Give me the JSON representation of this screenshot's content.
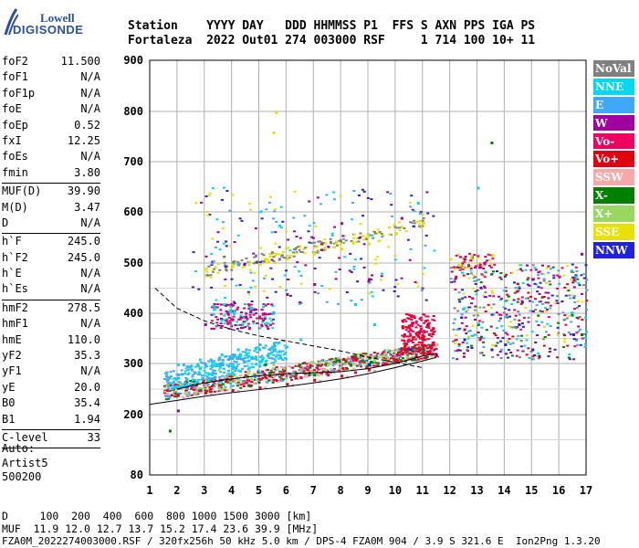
{
  "logo": {
    "line1": "Lowell",
    "line2": "DIGISONDE"
  },
  "header": {
    "line1": "Station    YYYY DAY   DDD HHMMSS P1  FFS S AXN PPS IGA PS",
    "line2": "Fortaleza  2022 Out01 274 003000 RSF     1 714 100 10+ 11"
  },
  "params": [
    [
      {
        "k": "foF2",
        "v": "11.500"
      },
      {
        "k": "foF1",
        "v": "N/A"
      },
      {
        "k": "foF1p",
        "v": "N/A"
      },
      {
        "k": "foE",
        "v": "N/A"
      },
      {
        "k": "foEp",
        "v": "0.52"
      },
      {
        "k": "fxI",
        "v": "12.25"
      },
      {
        "k": "foEs",
        "v": "N/A"
      },
      {
        "k": "fmin",
        "v": "3.80"
      }
    ],
    [
      {
        "k": "MUF(D)",
        "v": "39.90"
      },
      {
        "k": "M(D)",
        "v": "3.47"
      },
      {
        "k": "D",
        "v": "N/A"
      }
    ],
    [
      {
        "k": "h`F",
        "v": "245.0"
      },
      {
        "k": "h`F2",
        "v": "245.0"
      },
      {
        "k": "h`E",
        "v": "N/A"
      },
      {
        "k": "h`Es",
        "v": "N/A"
      }
    ],
    [
      {
        "k": "hmF2",
        "v": "278.5"
      },
      {
        "k": "hmF1",
        "v": "N/A"
      },
      {
        "k": "hmE",
        "v": "110.0"
      },
      {
        "k": "yF2",
        "v": "35.3"
      },
      {
        "k": "yF1",
        "v": "N/A"
      },
      {
        "k": "yE",
        "v": "20.0"
      },
      {
        "k": "B0",
        "v": "35.4"
      },
      {
        "k": "B1",
        "v": "1.94"
      }
    ],
    [
      {
        "k": "C-level",
        "v": "33"
      }
    ]
  ],
  "auto": {
    "line1": "Auto:",
    "line2": "Artist5",
    "line3": "500200"
  },
  "legend": [
    {
      "label": "NoVal",
      "color": "#808080"
    },
    {
      "label": "NNE",
      "color": "#00d8f0"
    },
    {
      "label": "E",
      "color": "#40a8f8"
    },
    {
      "label": "W",
      "color": "#a000a0"
    },
    {
      "label": "Vo-",
      "color": "#f00060"
    },
    {
      "label": "Vo+",
      "color": "#e00010"
    },
    {
      "label": "SSW",
      "color": "#f8a8a8"
    },
    {
      "label": "X-",
      "color": "#008000"
    },
    {
      "label": "X+",
      "color": "#98d860"
    },
    {
      "label": "SSE",
      "color": "#e8e000"
    },
    {
      "label": "NNW",
      "color": "#2020e0"
    }
  ],
  "chart_data": {
    "type": "scatter",
    "xlim": [
      1,
      17
    ],
    "ylim": [
      80,
      900
    ],
    "x_ticks": [
      1,
      2,
      3,
      4,
      5,
      6,
      7,
      8,
      9,
      10,
      11,
      12,
      13,
      14,
      15,
      16,
      17
    ],
    "y_ticks": [
      80,
      200,
      300,
      400,
      500,
      600,
      700,
      800,
      900
    ],
    "grid": true,
    "series": [
      {
        "name": "E",
        "points": [
          [
            1.6,
            270
          ],
          [
            2.0,
            280
          ],
          [
            2.5,
            290
          ],
          [
            3.0,
            300
          ],
          [
            3.5,
            310
          ],
          [
            4.0,
            320
          ],
          [
            4.5,
            330
          ],
          [
            5.0,
            340
          ],
          [
            5.5,
            330
          ],
          [
            2.2,
            300
          ],
          [
            3.2,
            310
          ]
        ]
      },
      {
        "name": "NNE",
        "points": [
          [
            2.0,
            300
          ],
          [
            2.8,
            310
          ],
          [
            3.6,
            320
          ],
          [
            4.2,
            330
          ],
          [
            6.5,
            350
          ],
          [
            8.5,
            420
          ],
          [
            9.2,
            380
          ],
          [
            10.0,
            560
          ],
          [
            10.8,
            620
          ],
          [
            13.0,
            650
          ]
        ]
      },
      {
        "name": "W",
        "points": [
          [
            2.0,
            210
          ],
          [
            3.0,
            380
          ],
          [
            4.0,
            390
          ],
          [
            4.8,
            410
          ],
          [
            6.0,
            440
          ],
          [
            7.0,
            460
          ],
          [
            8.0,
            580
          ],
          [
            9.0,
            470
          ],
          [
            10.2,
            590
          ],
          [
            12.5,
            510
          ],
          [
            15.0,
            470
          ],
          [
            16.8,
            520
          ]
        ]
      },
      {
        "name": "Vo-",
        "points": [
          [
            1.6,
            250
          ],
          [
            2.5,
            255
          ],
          [
            3.5,
            260
          ],
          [
            4.5,
            265
          ],
          [
            5.5,
            270
          ],
          [
            6.5,
            275
          ],
          [
            7.5,
            280
          ],
          [
            8.5,
            285
          ],
          [
            9.5,
            300
          ],
          [
            10.5,
            330
          ],
          [
            11.2,
            360
          ]
        ]
      },
      {
        "name": "Vo+",
        "points": [
          [
            2.0,
            240
          ],
          [
            3.0,
            245
          ],
          [
            4.0,
            250
          ],
          [
            5.0,
            255
          ],
          [
            6.0,
            262
          ],
          [
            7.0,
            270
          ],
          [
            8.0,
            278
          ],
          [
            9.0,
            290
          ],
          [
            10.0,
            310
          ],
          [
            11.0,
            350
          ],
          [
            12.5,
            370
          ]
        ]
      },
      {
        "name": "SSW",
        "points": [
          [
            2.2,
            235
          ],
          [
            3.2,
            242
          ],
          [
            4.2,
            248
          ],
          [
            5.2,
            255
          ],
          [
            6.2,
            260
          ],
          [
            7.2,
            268
          ],
          [
            8.2,
            276
          ],
          [
            9.2,
            288
          ],
          [
            10.2,
            305
          ]
        ]
      },
      {
        "name": "X-",
        "points": [
          [
            1.7,
            170
          ],
          [
            5.2,
            300
          ],
          [
            7.0,
            280
          ],
          [
            9.0,
            300
          ],
          [
            11.0,
            330
          ],
          [
            13.5,
            740
          ],
          [
            16.8,
            360
          ]
        ]
      },
      {
        "name": "X+",
        "points": [
          [
            3.5,
            290
          ],
          [
            5.5,
            300
          ],
          [
            7.5,
            300
          ],
          [
            9.5,
            310
          ],
          [
            11.5,
            340
          ]
        ]
      },
      {
        "name": "SSE",
        "points": [
          [
            3.0,
            490
          ],
          [
            4.0,
            495
          ],
          [
            5.0,
            500
          ],
          [
            6.0,
            510
          ],
          [
            7.0,
            520
          ],
          [
            8.0,
            530
          ],
          [
            9.0,
            540
          ],
          [
            10.0,
            560
          ],
          [
            11.0,
            580
          ],
          [
            12.0,
            510
          ],
          [
            5.5,
            760
          ],
          [
            5.6,
            800
          ]
        ]
      },
      {
        "name": "NNW",
        "points": [
          [
            9.0,
            300
          ],
          [
            10.5,
            330
          ],
          [
            12.5,
            350
          ],
          [
            13.5,
            330
          ],
          [
            14.0,
            340
          ],
          [
            14.5,
            380
          ],
          [
            15.0,
            330
          ],
          [
            16.5,
            360
          ]
        ]
      }
    ],
    "annotations": [
      "MUF 11.9 12.0 12.7 13.7 15.2 17.4 23.6 39.9 [MHz]"
    ]
  },
  "footer": {
    "line1": "D     100  200  400  600  800 1000 1500 3000 [km]",
    "line2": "MUF  11.9 12.0 12.7 13.7 15.2 17.4 23.6 39.9 [MHz]",
    "line3": "FZA0M_2022274003000.RSF / 320fx256h 50 kHz 5.0 km / DPS-4 FZA0M 904 / 3.9 S 321.6 E  Ion2Png 1.3.20"
  }
}
